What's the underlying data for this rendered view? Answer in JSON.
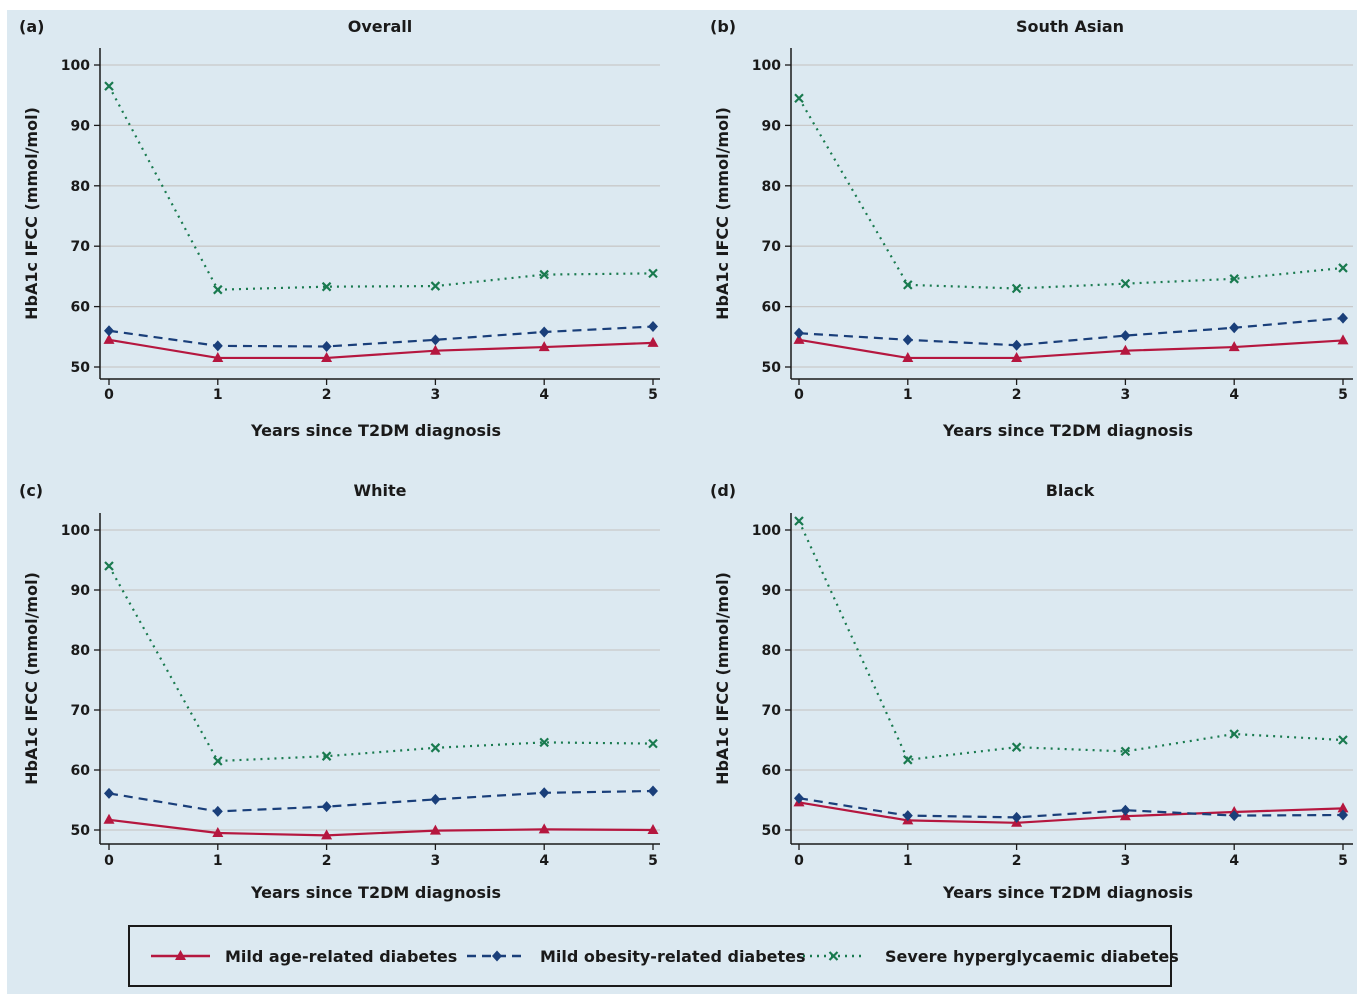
{
  "chart_data": [
    {
      "type": "line",
      "panel_label": "(a)",
      "title": "Overall",
      "xlabel": "Years since T2DM diagnosis",
      "ylabel": "HbA1c IFCC (mmol/mol)",
      "x": [
        0,
        1,
        2,
        3,
        4,
        5
      ],
      "xticks": [
        "0",
        "1",
        "2",
        "3",
        "4",
        "5"
      ],
      "yticks": [
        "50",
        "60",
        "70",
        "80",
        "90",
        "100"
      ],
      "ylim": [
        48,
        103
      ],
      "series": [
        {
          "name": "Mild age-related diabetes",
          "values": [
            54.5,
            51.5,
            51.5,
            52.7,
            53.3,
            54.0
          ]
        },
        {
          "name": "Mild obesity-related diabetes",
          "values": [
            56.0,
            53.5,
            53.4,
            54.5,
            55.8,
            56.7
          ]
        },
        {
          "name": "Severe hyperglycaemic diabetes",
          "values": [
            96.5,
            62.8,
            63.3,
            63.4,
            65.3,
            65.5
          ]
        }
      ]
    },
    {
      "type": "line",
      "panel_label": "(b)",
      "title": "South Asian",
      "xlabel": "Years since T2DM diagnosis",
      "ylabel": "HbA1c IFCC (mmol/mol)",
      "x": [
        0,
        1,
        2,
        3,
        4,
        5
      ],
      "xticks": [
        "0",
        "1",
        "2",
        "3",
        "4",
        "5"
      ],
      "yticks": [
        "50",
        "60",
        "70",
        "80",
        "90",
        "100"
      ],
      "ylim": [
        48,
        103
      ],
      "series": [
        {
          "name": "Mild age-related diabetes",
          "values": [
            54.5,
            51.5,
            51.5,
            52.7,
            53.3,
            54.4
          ]
        },
        {
          "name": "Mild obesity-related diabetes",
          "values": [
            55.6,
            54.5,
            53.6,
            55.2,
            56.5,
            58.1
          ]
        },
        {
          "name": "Severe hyperglycaemic diabetes",
          "values": [
            94.5,
            63.6,
            63.0,
            63.8,
            64.6,
            66.4
          ]
        }
      ]
    },
    {
      "type": "line",
      "panel_label": "(c)",
      "title": "White",
      "xlabel": "Years since T2DM diagnosis",
      "ylabel": "HbA1c IFCC (mmol/mol)",
      "x": [
        0,
        1,
        2,
        3,
        4,
        5
      ],
      "xticks": [
        "0",
        "1",
        "2",
        "3",
        "4",
        "5"
      ],
      "yticks": [
        "50",
        "60",
        "70",
        "80",
        "90",
        "100"
      ],
      "ylim": [
        48,
        103
      ],
      "series": [
        {
          "name": "Mild age-related diabetes",
          "values": [
            51.7,
            49.5,
            49.1,
            49.9,
            50.1,
            50.0
          ]
        },
        {
          "name": "Mild obesity-related diabetes",
          "values": [
            56.1,
            53.1,
            53.9,
            55.1,
            56.2,
            56.5
          ]
        },
        {
          "name": "Severe hyperglycaemic diabetes",
          "values": [
            94.0,
            61.5,
            62.3,
            63.7,
            64.6,
            64.4
          ]
        }
      ]
    },
    {
      "type": "line",
      "panel_label": "(d)",
      "title": "Black",
      "xlabel": "Years since T2DM diagnosis",
      "ylabel": "HbA1c IFCC (mmol/mol)",
      "x": [
        0,
        1,
        2,
        3,
        4,
        5
      ],
      "xticks": [
        "0",
        "1",
        "2",
        "3",
        "4",
        "5"
      ],
      "yticks": [
        "50",
        "60",
        "70",
        "80",
        "90",
        "100"
      ],
      "ylim": [
        48,
        103
      ],
      "series": [
        {
          "name": "Mild age-related diabetes",
          "values": [
            54.6,
            51.6,
            51.2,
            52.3,
            53.0,
            53.6
          ]
        },
        {
          "name": "Mild obesity-related diabetes",
          "values": [
            55.3,
            52.4,
            52.1,
            53.3,
            52.4,
            52.5
          ]
        },
        {
          "name": "Severe hyperglycaemic diabetes",
          "values": [
            101.5,
            61.7,
            63.8,
            63.1,
            66.0,
            65.0
          ]
        }
      ]
    }
  ],
  "legend": {
    "position": "bottom",
    "items": [
      "Mild age-related diabetes",
      "Mild obesity-related diabetes",
      "Severe hyperglycaemic diabetes"
    ]
  },
  "style": {
    "background": "#dce9f1",
    "grid": true,
    "grid_color": "#c9c9c9",
    "series_colors": [
      "#b5173f",
      "#1a3f7a",
      "#197a4f"
    ],
    "series_line_styles": [
      "solid",
      "dashed",
      "dotted"
    ],
    "series_markers": [
      "triangle",
      "diamond",
      "x"
    ]
  }
}
